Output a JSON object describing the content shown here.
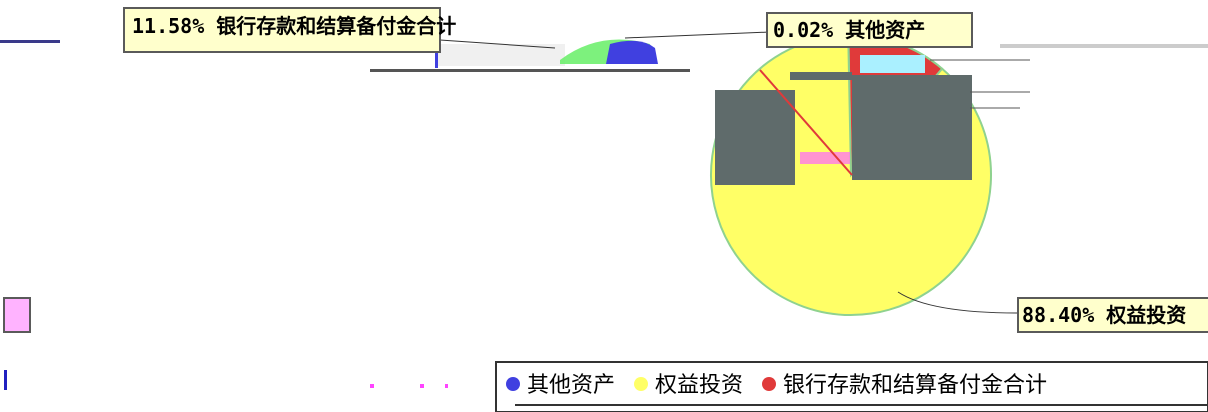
{
  "chart_data": {
    "type": "pie",
    "categories": [
      "其他资产",
      "权益投资",
      "银行存款和结算备付金合计"
    ],
    "values": [
      0.02,
      88.4,
      11.58
    ],
    "unit": "%",
    "data_labels": [
      "0.02% 其他资产",
      "88.40% 权益投资",
      "11.58% 银行存款和结算备付金合计"
    ],
    "legend": {
      "position": "bottom",
      "entries": [
        "其他资产",
        "权益投资",
        "银行存款和结算备付金合计"
      ]
    },
    "colors": {
      "其他资产": "#4040e0",
      "权益投资": "#ffff66",
      "银行存款和结算备付金合计": "#e03a3a",
      "callout_bg": "#ffffcc",
      "callout_bg_alt": "#ffb3ff",
      "callout_border": "#5a5a5a",
      "pie_edge": "#8fd28f"
    }
  }
}
